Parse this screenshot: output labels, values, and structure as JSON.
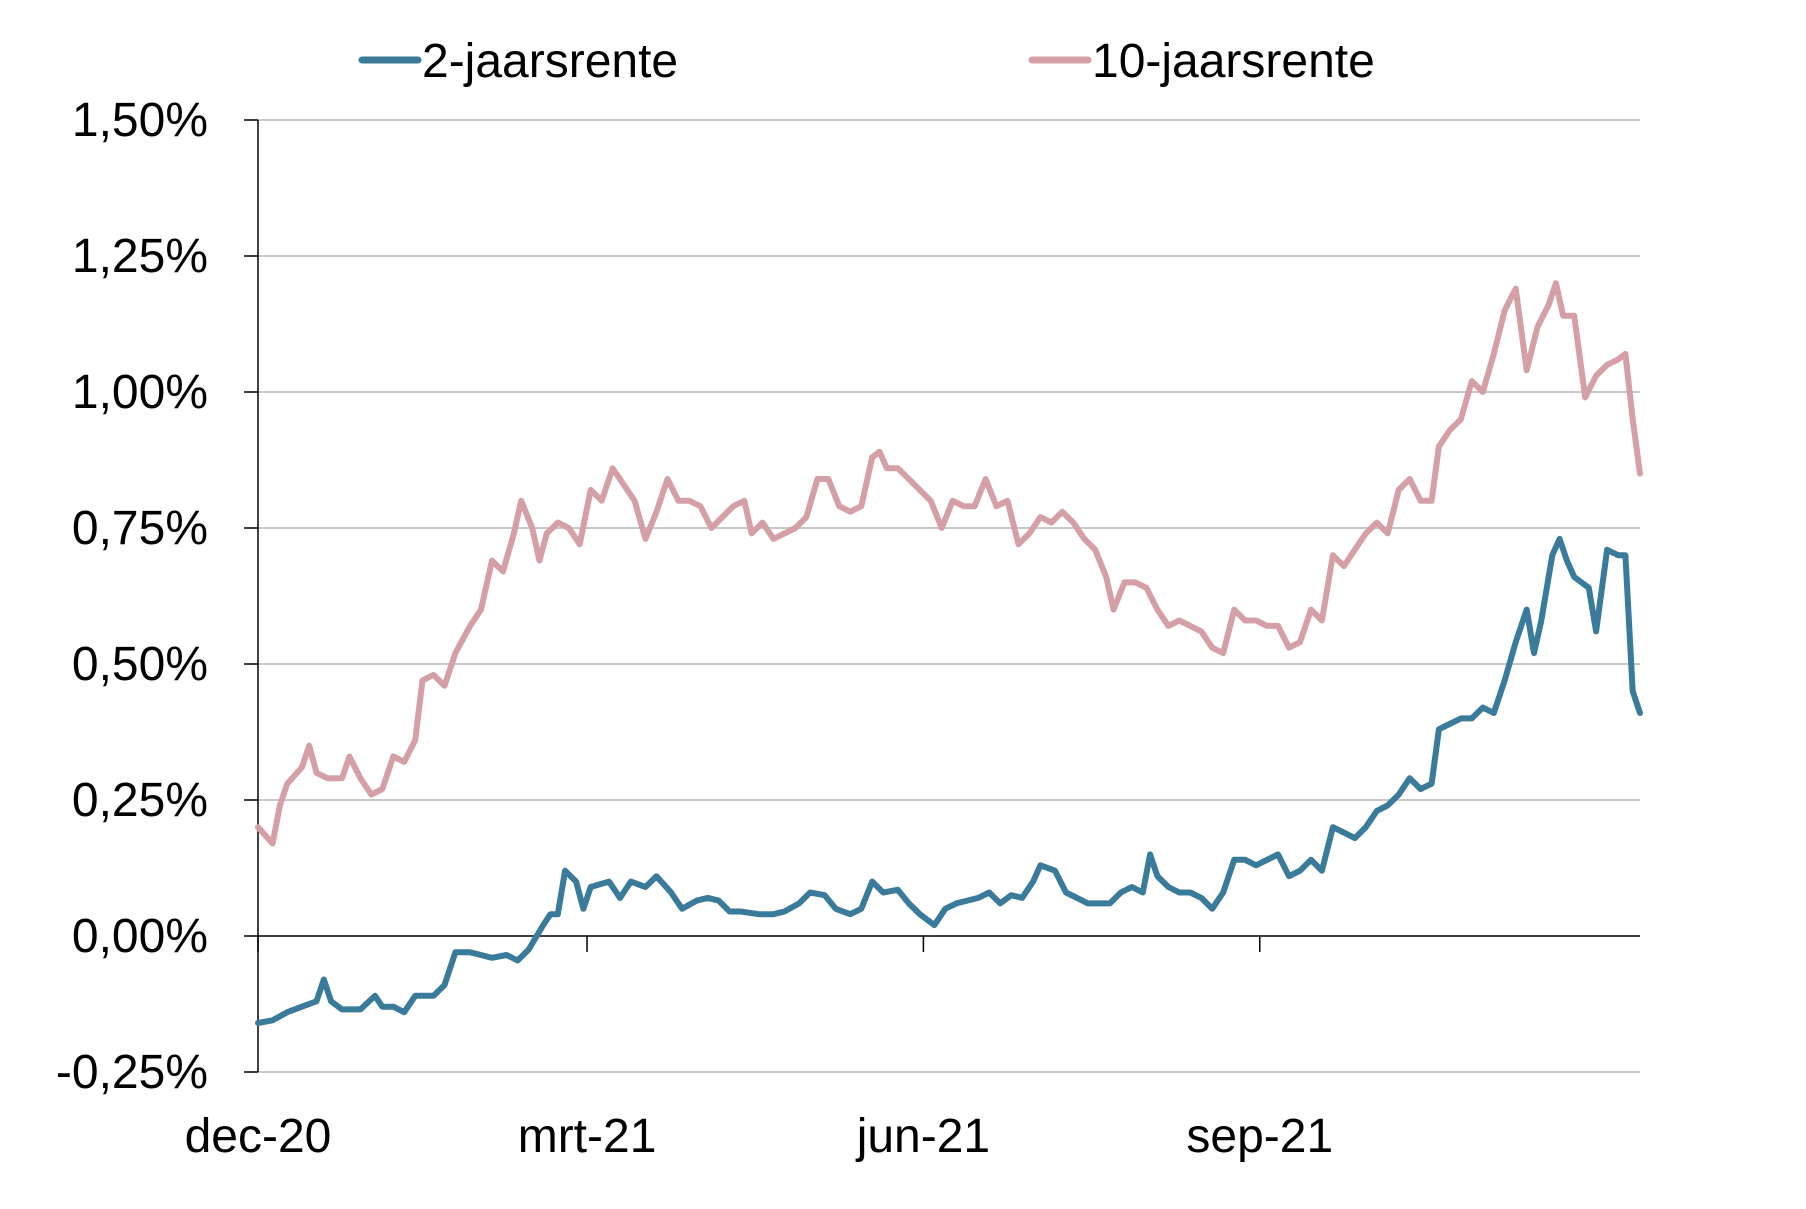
{
  "chart_data": {
    "type": "line",
    "x_ticks": [
      "dec-20",
      "mrt-21",
      "jun-21",
      "sep-21"
    ],
    "y_ticks": [
      "-0,25%",
      "0,00%",
      "0,25%",
      "0,50%",
      "0,75%",
      "1,00%",
      "1,25%",
      "1,50%"
    ],
    "ylim": [
      -0.25,
      1.5
    ],
    "y_tick_values": [
      -0.25,
      0,
      0.25,
      0.5,
      0.75,
      1.0,
      1.25,
      1.5
    ],
    "grid": true,
    "legend_position": "top",
    "series": [
      {
        "name": "2-jaarsrente",
        "color": "#3a7a9a",
        "points": [
          [
            "2020-12-01",
            -0.16
          ],
          [
            "2020-12-05",
            -0.155
          ],
          [
            "2020-12-09",
            -0.14
          ],
          [
            "2020-12-13",
            -0.13
          ],
          [
            "2020-12-17",
            -0.12
          ],
          [
            "2020-12-19",
            -0.08
          ],
          [
            "2020-12-21",
            -0.12
          ],
          [
            "2020-12-24",
            -0.135
          ],
          [
            "2020-12-29",
            -0.135
          ],
          [
            "2021-01-02",
            -0.11
          ],
          [
            "2021-01-04",
            -0.13
          ],
          [
            "2021-01-07",
            -0.13
          ],
          [
            "2021-01-10",
            -0.14
          ],
          [
            "2021-01-13",
            -0.11
          ],
          [
            "2021-01-18",
            -0.11
          ],
          [
            "2021-01-21",
            -0.09
          ],
          [
            "2021-01-24",
            -0.03
          ],
          [
            "2021-01-28",
            -0.03
          ],
          [
            "2021-01-31",
            -0.035
          ],
          [
            "2021-02-03",
            -0.04
          ],
          [
            "2021-02-07",
            -0.035
          ],
          [
            "2021-02-10",
            -0.045
          ],
          [
            "2021-02-13",
            -0.025
          ],
          [
            "2021-02-17",
            0.02
          ],
          [
            "2021-02-19",
            0.04
          ],
          [
            "2021-02-21",
            0.04
          ],
          [
            "2021-02-23",
            0.12
          ],
          [
            "2021-02-26",
            0.1
          ],
          [
            "2021-02-28",
            0.05
          ],
          [
            "2021-03-02",
            0.09
          ],
          [
            "2021-03-07",
            0.1
          ],
          [
            "2021-03-10",
            0.07
          ],
          [
            "2021-03-13",
            0.1
          ],
          [
            "2021-03-17",
            0.09
          ],
          [
            "2021-03-20",
            0.11
          ],
          [
            "2021-03-24",
            0.08
          ],
          [
            "2021-03-27",
            0.05
          ],
          [
            "2021-03-31",
            0.065
          ],
          [
            "2021-04-03",
            0.07
          ],
          [
            "2021-04-06",
            0.065
          ],
          [
            "2021-04-09",
            0.045
          ],
          [
            "2021-04-12",
            0.045
          ],
          [
            "2021-04-17",
            0.04
          ],
          [
            "2021-04-21",
            0.04
          ],
          [
            "2021-04-24",
            0.045
          ],
          [
            "2021-04-28",
            0.06
          ],
          [
            "2021-05-01",
            0.08
          ],
          [
            "2021-05-05",
            0.075
          ],
          [
            "2021-05-08",
            0.05
          ],
          [
            "2021-05-12",
            0.04
          ],
          [
            "2021-05-15",
            0.05
          ],
          [
            "2021-05-18",
            0.1
          ],
          [
            "2021-05-21",
            0.08
          ],
          [
            "2021-05-25",
            0.085
          ],
          [
            "2021-05-28",
            0.06
          ],
          [
            "2021-05-31",
            0.04
          ],
          [
            "2021-06-04",
            0.02
          ],
          [
            "2021-06-07",
            0.05
          ],
          [
            "2021-06-10",
            0.06
          ],
          [
            "2021-06-13",
            0.065
          ],
          [
            "2021-06-16",
            0.07
          ],
          [
            "2021-06-19",
            0.08
          ],
          [
            "2021-06-22",
            0.06
          ],
          [
            "2021-06-25",
            0.075
          ],
          [
            "2021-06-28",
            0.07
          ],
          [
            "2021-07-01",
            0.1
          ],
          [
            "2021-07-03",
            0.13
          ],
          [
            "2021-07-07",
            0.12
          ],
          [
            "2021-07-10",
            0.08
          ],
          [
            "2021-07-13",
            0.07
          ],
          [
            "2021-07-16",
            0.06
          ],
          [
            "2021-07-19",
            0.06
          ],
          [
            "2021-07-22",
            0.06
          ],
          [
            "2021-07-25",
            0.08
          ],
          [
            "2021-07-28",
            0.09
          ],
          [
            "2021-07-31",
            0.08
          ],
          [
            "2021-08-02",
            0.15
          ],
          [
            "2021-08-04",
            0.11
          ],
          [
            "2021-08-07",
            0.09
          ],
          [
            "2021-08-10",
            0.08
          ],
          [
            "2021-08-13",
            0.08
          ],
          [
            "2021-08-16",
            0.07
          ],
          [
            "2021-08-19",
            0.05
          ],
          [
            "2021-08-22",
            0.08
          ],
          [
            "2021-08-25",
            0.14
          ],
          [
            "2021-08-28",
            0.14
          ],
          [
            "2021-08-31",
            0.13
          ],
          [
            "2021-09-03",
            0.14
          ],
          [
            "2021-09-06",
            0.15
          ],
          [
            "2021-09-09",
            0.11
          ],
          [
            "2021-09-12",
            0.12
          ],
          [
            "2021-09-15",
            0.14
          ],
          [
            "2021-09-18",
            0.12
          ],
          [
            "2021-09-21",
            0.2
          ],
          [
            "2021-09-24",
            0.19
          ],
          [
            "2021-09-27",
            0.18
          ],
          [
            "2021-09-30",
            0.2
          ],
          [
            "2021-10-03",
            0.23
          ],
          [
            "2021-10-06",
            0.24
          ],
          [
            "2021-10-09",
            0.26
          ],
          [
            "2021-10-12",
            0.29
          ],
          [
            "2021-10-15",
            0.27
          ],
          [
            "2021-10-18",
            0.28
          ],
          [
            "2021-10-20",
            0.38
          ],
          [
            "2021-10-23",
            0.39
          ],
          [
            "2021-10-26",
            0.4
          ],
          [
            "2021-10-29",
            0.4
          ],
          [
            "2021-11-01",
            0.42
          ],
          [
            "2021-11-04",
            0.41
          ],
          [
            "2021-11-07",
            0.47
          ],
          [
            "2021-11-10",
            0.54
          ],
          [
            "2021-11-13",
            0.6
          ],
          [
            "2021-11-15",
            0.52
          ],
          [
            "2021-11-17",
            0.58
          ],
          [
            "2021-11-20",
            0.7
          ],
          [
            "2021-11-22",
            0.73
          ],
          [
            "2021-11-24",
            0.69
          ],
          [
            "2021-11-26",
            0.66
          ],
          [
            "2021-11-30",
            0.64
          ],
          [
            "2021-12-02",
            0.56
          ],
          [
            "2021-12-05",
            0.71
          ],
          [
            "2021-12-08",
            0.7
          ],
          [
            "2021-12-10",
            0.7
          ],
          [
            "2021-12-12",
            0.45
          ],
          [
            "2021-12-14",
            0.41
          ]
        ]
      },
      {
        "name": "10-jaarsrente",
        "color": "#d4a0a6",
        "points": [
          [
            "2020-12-01",
            0.2
          ],
          [
            "2020-12-05",
            0.17
          ],
          [
            "2020-12-07",
            0.24
          ],
          [
            "2020-12-09",
            0.28
          ],
          [
            "2020-12-13",
            0.31
          ],
          [
            "2020-12-15",
            0.35
          ],
          [
            "2020-12-17",
            0.3
          ],
          [
            "2020-12-20",
            0.29
          ],
          [
            "2020-12-24",
            0.29
          ],
          [
            "2020-12-26",
            0.33
          ],
          [
            "2020-12-29",
            0.29
          ],
          [
            "2021-01-01",
            0.26
          ],
          [
            "2021-01-04",
            0.27
          ],
          [
            "2021-01-07",
            0.33
          ],
          [
            "2021-01-10",
            0.32
          ],
          [
            "2021-01-13",
            0.36
          ],
          [
            "2021-01-15",
            0.47
          ],
          [
            "2021-01-18",
            0.48
          ],
          [
            "2021-01-21",
            0.46
          ],
          [
            "2021-01-24",
            0.52
          ],
          [
            "2021-01-28",
            0.57
          ],
          [
            "2021-01-31",
            0.6
          ],
          [
            "2021-02-03",
            0.69
          ],
          [
            "2021-02-06",
            0.67
          ],
          [
            "2021-02-09",
            0.74
          ],
          [
            "2021-02-11",
            0.8
          ],
          [
            "2021-02-14",
            0.75
          ],
          [
            "2021-02-16",
            0.69
          ],
          [
            "2021-02-18",
            0.74
          ],
          [
            "2021-02-21",
            0.76
          ],
          [
            "2021-02-24",
            0.75
          ],
          [
            "2021-02-27",
            0.72
          ],
          [
            "2021-03-02",
            0.82
          ],
          [
            "2021-03-05",
            0.8
          ],
          [
            "2021-03-08",
            0.86
          ],
          [
            "2021-03-11",
            0.83
          ],
          [
            "2021-03-14",
            0.8
          ],
          [
            "2021-03-17",
            0.73
          ],
          [
            "2021-03-20",
            0.78
          ],
          [
            "2021-03-23",
            0.84
          ],
          [
            "2021-03-26",
            0.8
          ],
          [
            "2021-03-29",
            0.8
          ],
          [
            "2021-04-01",
            0.79
          ],
          [
            "2021-04-04",
            0.75
          ],
          [
            "2021-04-07",
            0.77
          ],
          [
            "2021-04-10",
            0.79
          ],
          [
            "2021-04-13",
            0.8
          ],
          [
            "2021-04-15",
            0.74
          ],
          [
            "2021-04-18",
            0.76
          ],
          [
            "2021-04-21",
            0.73
          ],
          [
            "2021-04-24",
            0.74
          ],
          [
            "2021-04-27",
            0.75
          ],
          [
            "2021-04-30",
            0.77
          ],
          [
            "2021-05-03",
            0.84
          ],
          [
            "2021-05-06",
            0.84
          ],
          [
            "2021-05-09",
            0.79
          ],
          [
            "2021-05-12",
            0.78
          ],
          [
            "2021-05-15",
            0.79
          ],
          [
            "2021-05-18",
            0.88
          ],
          [
            "2021-05-20",
            0.89
          ],
          [
            "2021-05-22",
            0.86
          ],
          [
            "2021-05-25",
            0.86
          ],
          [
            "2021-05-28",
            0.84
          ],
          [
            "2021-05-31",
            0.82
          ],
          [
            "2021-06-03",
            0.8
          ],
          [
            "2021-06-06",
            0.75
          ],
          [
            "2021-06-09",
            0.8
          ],
          [
            "2021-06-12",
            0.79
          ],
          [
            "2021-06-15",
            0.79
          ],
          [
            "2021-06-18",
            0.84
          ],
          [
            "2021-06-21",
            0.79
          ],
          [
            "2021-06-24",
            0.8
          ],
          [
            "2021-06-27",
            0.72
          ],
          [
            "2021-06-30",
            0.74
          ],
          [
            "2021-07-03",
            0.77
          ],
          [
            "2021-07-06",
            0.76
          ],
          [
            "2021-07-09",
            0.78
          ],
          [
            "2021-07-12",
            0.76
          ],
          [
            "2021-07-15",
            0.73
          ],
          [
            "2021-07-18",
            0.71
          ],
          [
            "2021-07-21",
            0.66
          ],
          [
            "2021-07-23",
            0.6
          ],
          [
            "2021-07-26",
            0.65
          ],
          [
            "2021-07-29",
            0.65
          ],
          [
            "2021-08-01",
            0.64
          ],
          [
            "2021-08-04",
            0.6
          ],
          [
            "2021-08-07",
            0.57
          ],
          [
            "2021-08-10",
            0.58
          ],
          [
            "2021-08-13",
            0.57
          ],
          [
            "2021-08-16",
            0.56
          ],
          [
            "2021-08-19",
            0.53
          ],
          [
            "2021-08-22",
            0.52
          ],
          [
            "2021-08-25",
            0.6
          ],
          [
            "2021-08-28",
            0.58
          ],
          [
            "2021-08-31",
            0.58
          ],
          [
            "2021-09-03",
            0.57
          ],
          [
            "2021-09-06",
            0.57
          ],
          [
            "2021-09-09",
            0.53
          ],
          [
            "2021-09-12",
            0.54
          ],
          [
            "2021-09-15",
            0.6
          ],
          [
            "2021-09-18",
            0.58
          ],
          [
            "2021-09-21",
            0.7
          ],
          [
            "2021-09-24",
            0.68
          ],
          [
            "2021-09-27",
            0.71
          ],
          [
            "2021-09-30",
            0.74
          ],
          [
            "2021-10-03",
            0.76
          ],
          [
            "2021-10-06",
            0.74
          ],
          [
            "2021-10-09",
            0.82
          ],
          [
            "2021-10-12",
            0.84
          ],
          [
            "2021-10-15",
            0.8
          ],
          [
            "2021-10-18",
            0.8
          ],
          [
            "2021-10-20",
            0.9
          ],
          [
            "2021-10-23",
            0.93
          ],
          [
            "2021-10-26",
            0.95
          ],
          [
            "2021-10-29",
            1.02
          ],
          [
            "2021-11-01",
            1.0
          ],
          [
            "2021-11-04",
            1.07
          ],
          [
            "2021-11-07",
            1.15
          ],
          [
            "2021-11-10",
            1.19
          ],
          [
            "2021-11-13",
            1.04
          ],
          [
            "2021-11-16",
            1.12
          ],
          [
            "2021-11-19",
            1.16
          ],
          [
            "2021-11-21",
            1.2
          ],
          [
            "2021-11-23",
            1.14
          ],
          [
            "2021-11-26",
            1.14
          ],
          [
            "2021-11-29",
            0.99
          ],
          [
            "2021-12-02",
            1.03
          ],
          [
            "2021-12-05",
            1.05
          ],
          [
            "2021-12-08",
            1.06
          ],
          [
            "2021-12-10",
            1.07
          ],
          [
            "2021-12-12",
            0.95
          ],
          [
            "2021-12-14",
            0.85
          ]
        ]
      }
    ]
  }
}
